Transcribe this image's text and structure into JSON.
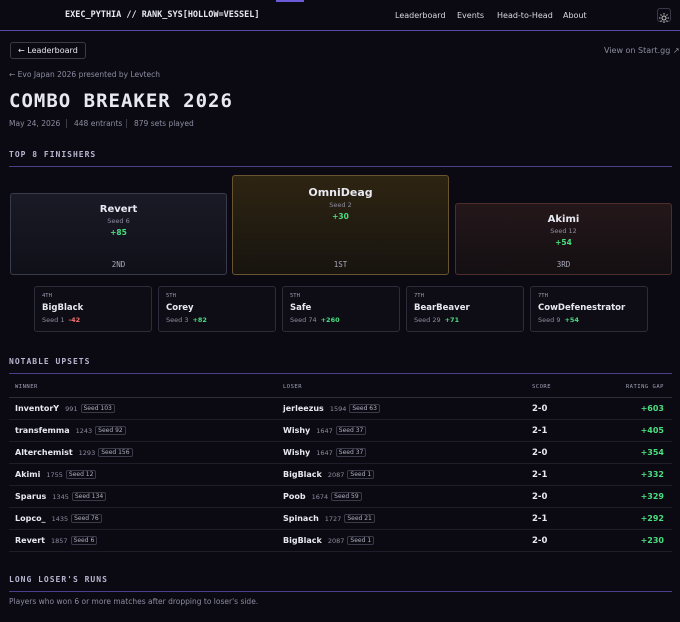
{
  "nav": {
    "brand": "EXEC_PYTHIA // RANK_SYS[HOLLOW=VESSEL]",
    "links": [
      "Leaderboard",
      "Events",
      "Head-to-Head",
      "About"
    ]
  },
  "header": {
    "back": "← Leaderboard",
    "external": "View on Start.gg ↗",
    "breadcrumb": "← Evo Japan 2026 presented by Levtech",
    "title": "COMBO BREAKER 2026",
    "meta": [
      "May 24, 2026",
      "448 entrants",
      "879 sets played"
    ]
  },
  "top8": {
    "title": "TOP 8 FINISHERS",
    "podium": [
      {
        "name": "Revert",
        "seed": "Seed 6",
        "delta": "+85",
        "place": "2ND"
      },
      {
        "name": "OmniDeag",
        "seed": "Seed 2",
        "delta": "+30",
        "place": "1ST"
      },
      {
        "name": "Akimi",
        "seed": "Seed 12",
        "delta": "+54",
        "place": "3RD"
      }
    ],
    "others": [
      {
        "place": "4TH",
        "name": "BigBlack",
        "seed": "Seed 1",
        "delta": "-42"
      },
      {
        "place": "5TH",
        "name": "Corey",
        "seed": "Seed 3",
        "delta": "+82"
      },
      {
        "place": "5TH",
        "name": "Safe",
        "seed": "Seed 74",
        "delta": "+260"
      },
      {
        "place": "7TH",
        "name": "BearBeaver",
        "seed": "Seed 29",
        "delta": "+71"
      },
      {
        "place": "7TH",
        "name": "CowDefenestrator",
        "seed": "Seed 9",
        "delta": "+54"
      }
    ]
  },
  "upsets": {
    "title": "NOTABLE UPSETS",
    "columns": [
      "WINNER",
      "LOSER",
      "SCORE",
      "RATING GAP"
    ],
    "rows": [
      {
        "winner": {
          "name": "InventorY",
          "rating": 991,
          "seed": "Seed 103"
        },
        "loser": {
          "name": "jerleezus",
          "rating": 1594,
          "seed": "Seed 63"
        },
        "score": "2-0",
        "gap": "+603"
      },
      {
        "winner": {
          "name": "transfemma",
          "rating": 1243,
          "seed": "Seed 92"
        },
        "loser": {
          "name": "Wishy",
          "rating": 1647,
          "seed": "Seed 37"
        },
        "score": "2-1",
        "gap": "+405"
      },
      {
        "winner": {
          "name": "Alterchemist",
          "rating": 1293,
          "seed": "Seed 156"
        },
        "loser": {
          "name": "Wishy",
          "rating": 1647,
          "seed": "Seed 37"
        },
        "score": "2-0",
        "gap": "+354"
      },
      {
        "winner": {
          "name": "Akimi",
          "rating": 1755,
          "seed": "Seed 12"
        },
        "loser": {
          "name": "BigBlack",
          "rating": 2087,
          "seed": "Seed 1"
        },
        "score": "2-1",
        "gap": "+332"
      },
      {
        "winner": {
          "name": "Sparus",
          "rating": 1345,
          "seed": "Seed 134"
        },
        "loser": {
          "name": "Poob",
          "rating": 1674,
          "seed": "Seed 59"
        },
        "score": "2-0",
        "gap": "+329"
      },
      {
        "winner": {
          "name": "Lopco_",
          "rating": 1435,
          "seed": "Seed 76"
        },
        "loser": {
          "name": "Spinach",
          "rating": 1727,
          "seed": "Seed 21"
        },
        "score": "2-1",
        "gap": "+292"
      },
      {
        "winner": {
          "name": "Revert",
          "rating": 1857,
          "seed": "Seed 6"
        },
        "loser": {
          "name": "BigBlack",
          "rating": 2087,
          "seed": "Seed 1"
        },
        "score": "2-0",
        "gap": "+230"
      }
    ]
  },
  "loser_runs": {
    "title": "LONG LOSER'S RUNS",
    "subtitle": "Players who won 6 or more matches after dropping to loser's side."
  }
}
